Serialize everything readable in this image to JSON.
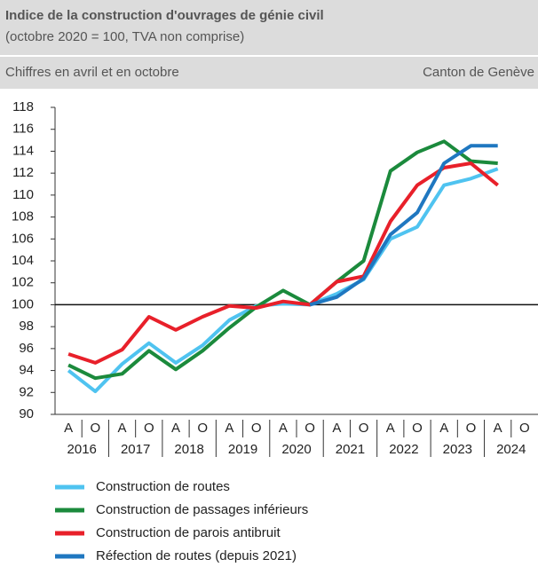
{
  "chart_data": {
    "type": "line",
    "title": "Indice de la construction d'ouvrages de génie civil",
    "subtitle": "(octobre 2020 = 100, TVA non comprise)",
    "note": "Chiffres en avril et en octobre",
    "source": "Canton de Genève",
    "categories": [
      "A",
      "O",
      "A",
      "O",
      "A",
      "O",
      "A",
      "O",
      "A",
      "O",
      "A",
      "O",
      "A",
      "O",
      "A",
      "O",
      "A",
      "O"
    ],
    "groups": [
      "2016",
      "2017",
      "2018",
      "2019",
      "2020",
      "2021",
      "2022",
      "2023",
      "2024"
    ],
    "ylim": [
      90,
      118
    ],
    "yticks": [
      90,
      92,
      94,
      96,
      98,
      100,
      102,
      104,
      106,
      108,
      110,
      112,
      114,
      116,
      118
    ],
    "reference_line": 100,
    "series": [
      {
        "name": "Construction de routes",
        "color": "#4fc3f0",
        "values": [
          94.0,
          92.1,
          94.6,
          96.5,
          94.7,
          96.3,
          98.6,
          99.9,
          100.1,
          100.0,
          101.0,
          102.3,
          106.0,
          107.1,
          110.9,
          111.5,
          112.4,
          null
        ]
      },
      {
        "name": "Construction de passages inférieurs",
        "color": "#1b8a3c",
        "values": [
          94.5,
          93.3,
          93.7,
          95.8,
          94.1,
          95.8,
          97.9,
          99.8,
          101.3,
          100.0,
          102.1,
          104.0,
          112.2,
          113.9,
          114.9,
          113.1,
          112.9,
          null
        ]
      },
      {
        "name": "Construction de parois antibruit",
        "color": "#e8202a",
        "values": [
          95.5,
          94.7,
          95.9,
          98.9,
          97.7,
          98.9,
          99.9,
          99.7,
          100.3,
          100.0,
          102.1,
          102.6,
          107.6,
          110.9,
          112.5,
          112.9,
          110.9,
          null
        ]
      },
      {
        "name": "Réfection de routes (depuis 2021)",
        "color": "#1f77c0",
        "values": [
          null,
          null,
          null,
          null,
          null,
          null,
          null,
          null,
          null,
          100.0,
          100.7,
          102.4,
          106.4,
          108.4,
          112.9,
          114.5,
          114.5,
          null
        ]
      }
    ]
  }
}
